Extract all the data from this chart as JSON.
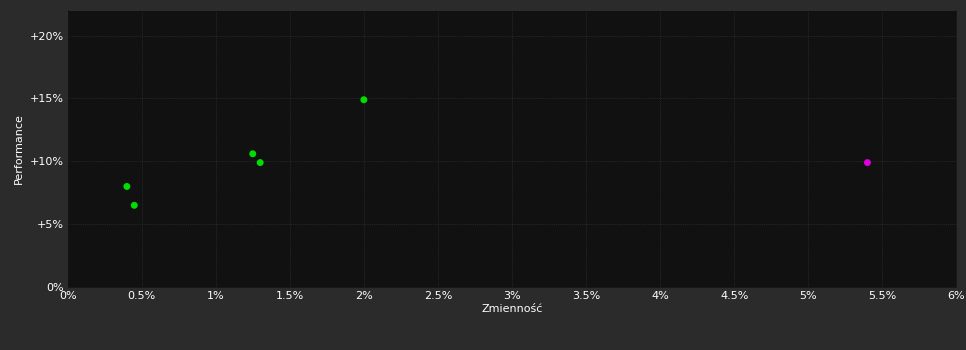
{
  "background_color": "#2b2b2b",
  "plot_bg_color": "#111111",
  "grid_color": "#3a3a3a",
  "text_color": "#ffffff",
  "xlabel": "Zmienność",
  "ylabel": "Performance",
  "xlim": [
    0.0,
    0.06
  ],
  "ylim": [
    0.0,
    0.22
  ],
  "xticks": [
    0.0,
    0.005,
    0.01,
    0.015,
    0.02,
    0.025,
    0.03,
    0.035,
    0.04,
    0.045,
    0.05,
    0.055,
    0.06
  ],
  "xticklabels": [
    "0%",
    "0.5%",
    "1%",
    "1.5%",
    "2%",
    "2.5%",
    "3%",
    "3.5%",
    "4%",
    "4.5%",
    "5%",
    "5.5%",
    "6%"
  ],
  "yticks": [
    0.0,
    0.05,
    0.1,
    0.15,
    0.2
  ],
  "yticklabels": [
    "0%",
    "+5%",
    "+10%",
    "+15%",
    "+20%"
  ],
  "green_points": [
    [
      0.004,
      0.08
    ],
    [
      0.0045,
      0.065
    ],
    [
      0.0125,
      0.106
    ],
    [
      0.013,
      0.099
    ],
    [
      0.02,
      0.149
    ]
  ],
  "magenta_points": [
    [
      0.054,
      0.099
    ]
  ],
  "green_color": "#00dd00",
  "magenta_color": "#dd00dd",
  "marker_size": 5,
  "font_size": 8,
  "label_font_size": 8
}
